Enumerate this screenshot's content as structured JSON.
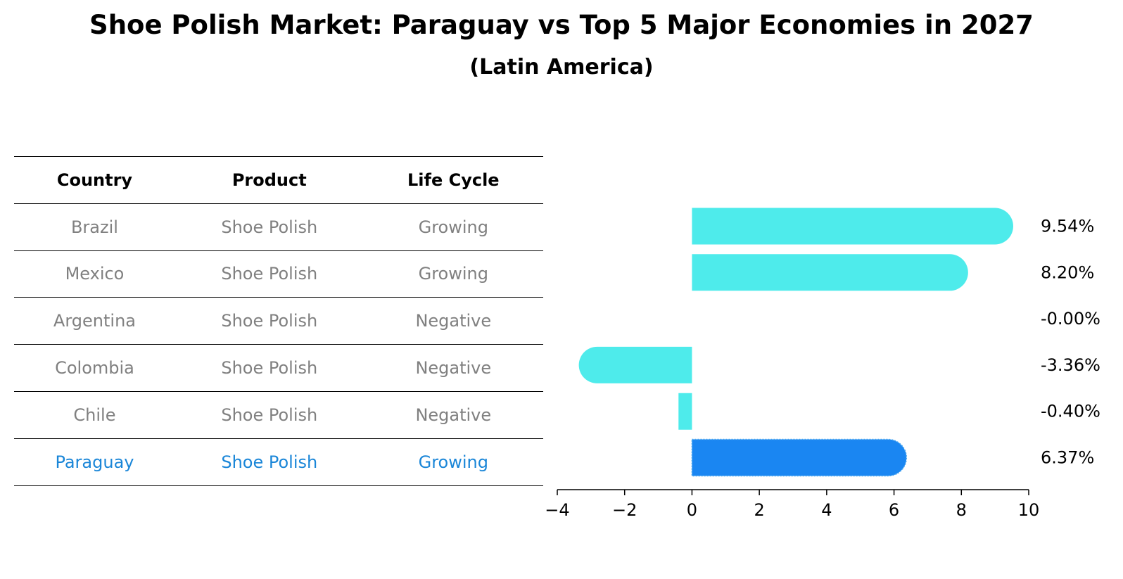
{
  "title": "Shoe Polish Market: Paraguay vs Top 5 Major Economies in 2027",
  "subtitle": "(Latin America)",
  "table": {
    "headers": [
      "Country",
      "Product",
      "Life Cycle"
    ],
    "rows": [
      [
        "Brazil",
        "Shoe Polish",
        "Growing"
      ],
      [
        "Mexico",
        "Shoe Polish",
        "Growing"
      ],
      [
        "Argentina",
        "Shoe Polish",
        "Negative"
      ],
      [
        "Colombia",
        "Shoe Polish",
        "Negative"
      ],
      [
        "Chile",
        "Shoe Polish",
        "Negative"
      ],
      [
        "Paraguay",
        "Shoe Polish",
        "Growing"
      ]
    ]
  },
  "colors": {
    "bar": "#4eebeb",
    "highlight_bar": "#1a86f2",
    "highlight_text": "#1a86d8",
    "row_text": "#808080"
  },
  "chart_data": {
    "type": "bar",
    "orientation": "horizontal",
    "categories": [
      "Brazil",
      "Mexico",
      "Argentina",
      "Colombia",
      "Chile",
      "Paraguay"
    ],
    "values": [
      9.54,
      8.2,
      -0.0,
      -3.36,
      -0.4,
      6.37
    ],
    "data_labels": [
      "9.54%",
      "8.20%",
      "-0.00%",
      "-3.36%",
      "-0.40%",
      "6.37%"
    ],
    "highlight": "Paraguay",
    "xlim": [
      -4,
      10
    ],
    "xticks": [
      -4,
      -2,
      0,
      2,
      4,
      6,
      8,
      10
    ],
    "xtick_labels": [
      "−4",
      "−2",
      "0",
      "2",
      "4",
      "6",
      "8",
      "10"
    ],
    "grid": false
  }
}
